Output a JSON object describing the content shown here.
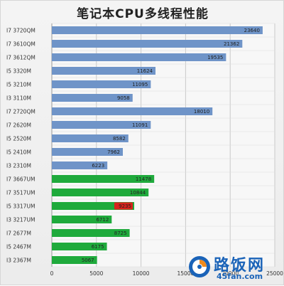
{
  "chart_data": {
    "type": "bar",
    "orientation": "horizontal",
    "title": "笔记本CPU多线程性能",
    "xlabel": "",
    "ylabel": "",
    "xlim": [
      0,
      25000
    ],
    "x_ticks": [
      "0",
      "5000",
      "10000",
      "15000",
      "20000",
      "25000"
    ],
    "grid": true,
    "categories": [
      "I7 3720QM",
      "I7 3610QM",
      "I7 3612QM",
      "I5 3320M",
      "I5 3210M",
      "I3 3110M",
      "I7 2720QM",
      "I7 2620M",
      "I5 2520M",
      "I5 2410M",
      "I3 2310M",
      "I7 3667UM",
      "I7 3517UM",
      "I5 3317UM",
      "I3 3217UM",
      "I7 2677M",
      "I5 2467M",
      "I3 2367M"
    ],
    "values": [
      23640,
      21362,
      19535,
      11624,
      11095,
      9058,
      18010,
      11091,
      8582,
      7962,
      6223,
      11478,
      10844,
      9235,
      6712,
      8725,
      6175,
      5067
    ],
    "bar_colors": [
      "#6f94c8",
      "#6f94c8",
      "#6f94c8",
      "#6f94c8",
      "#6f94c8",
      "#6f94c8",
      "#6f94c8",
      "#6f94c8",
      "#6f94c8",
      "#6f94c8",
      "#6f94c8",
      "#1faa3c",
      "#1faa3c",
      "#1faa3c",
      "#1faa3c",
      "#1faa3c",
      "#1faa3c",
      "#1faa3c"
    ],
    "highlight": {
      "category": "I5 3317UM",
      "label_color": "#d8231d"
    }
  },
  "watermark": {
    "text": "路饭网",
    "url": "45fan.com",
    "color": "#1a63b8"
  }
}
